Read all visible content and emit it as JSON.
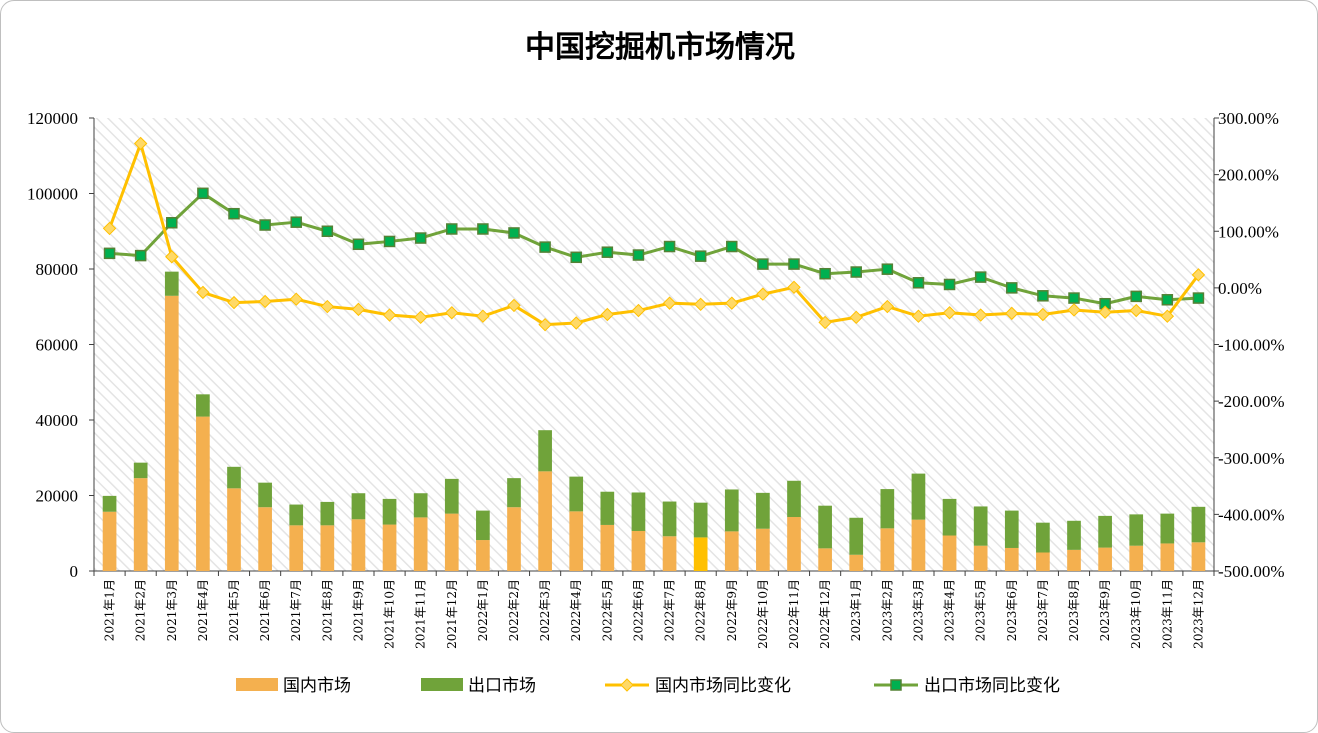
{
  "chart_data": {
    "type": "bar",
    "title": "中国挖掘机市场情况",
    "categories": [
      "2021年1月",
      "2021年2月",
      "2021年3月",
      "2021年4月",
      "2021年5月",
      "2021年6月",
      "2021年7月",
      "2021年8月",
      "2021年9月",
      "2021年10月",
      "2021年11月",
      "2021年12月",
      "2022年1月",
      "2022年2月",
      "2022年3月",
      "2022年4月",
      "2022年5月",
      "2022年6月",
      "2022年7月",
      "2022年8月",
      "2022年9月",
      "2022年10月",
      "2022年11月",
      "2022年12月",
      "2023年1月",
      "2023年2月",
      "2023年3月",
      "2023年4月",
      "2023年5月",
      "2023年6月",
      "2023年7月",
      "2023年8月",
      "2023年9月",
      "2023年10月",
      "2023年11月",
      "2023年12月"
    ],
    "left_axis": {
      "min": 0,
      "max": 120000,
      "ticks": [
        "0",
        "20000",
        "40000",
        "60000",
        "80000",
        "100000",
        "120000"
      ]
    },
    "right_axis": {
      "min": -500,
      "max": 300,
      "ticks": [
        "-500.00%",
        "-400.00%",
        "-300.00%",
        "-200.00%",
        "-100.00%",
        "0.00%",
        "100.00%",
        "200.00%",
        "300.00%"
      ]
    },
    "series": [
      {
        "name": "国内市场",
        "kind": "bar",
        "axis": "left",
        "color": "#f4b04f",
        "values": [
          15700,
          24600,
          72900,
          40900,
          21900,
          16900,
          12100,
          12100,
          13700,
          12300,
          14200,
          15200,
          8200,
          16900,
          26400,
          15800,
          12200,
          10600,
          9200,
          8900,
          10500,
          11200,
          14300,
          6000,
          4300,
          11300,
          13600,
          9400,
          6700,
          6100,
          4900,
          5600,
          6200,
          6700,
          7300,
          7600
        ]
      },
      {
        "name": "出口市场",
        "kind": "bar",
        "axis": "left",
        "color": "#70a33a",
        "values": [
          4200,
          4100,
          6400,
          5900,
          5700,
          6500,
          5500,
          6200,
          6900,
          6800,
          6400,
          9200,
          7800,
          7700,
          10900,
          9200,
          8800,
          10200,
          9200,
          9200,
          11100,
          9500,
          9600,
          11300,
          9800,
          10400,
          12200,
          9700,
          10400,
          9900,
          7900,
          7700,
          8400,
          8300,
          7900,
          9400
        ]
      },
      {
        "name": "国内市场同比变化",
        "kind": "line",
        "axis": "right",
        "color": "#ffc000",
        "marker": "diamond",
        "values": [
          105,
          255,
          55,
          -8,
          -26,
          -24,
          -20,
          -33,
          -38,
          -48,
          -52,
          -44,
          -50,
          -31,
          -65,
          -62,
          -47,
          -40,
          -27,
          -29,
          -27,
          -11,
          1,
          -61,
          -52,
          -33,
          -50,
          -44,
          -48,
          -45,
          -47,
          -39,
          -43,
          -40,
          -50,
          23
        ]
      },
      {
        "name": "出口市场同比变化",
        "kind": "line",
        "axis": "right",
        "color": "#70a33a",
        "marker": "square",
        "values": [
          61,
          57,
          115,
          167,
          131,
          111,
          116,
          100,
          77,
          82,
          88,
          104,
          104,
          97,
          72,
          54,
          63,
          58,
          73,
          56,
          73,
          42,
          42,
          25,
          28,
          33,
          9,
          6,
          19,
          0,
          -14,
          -18,
          -28,
          -15,
          -21,
          -18
        ]
      }
    ]
  }
}
